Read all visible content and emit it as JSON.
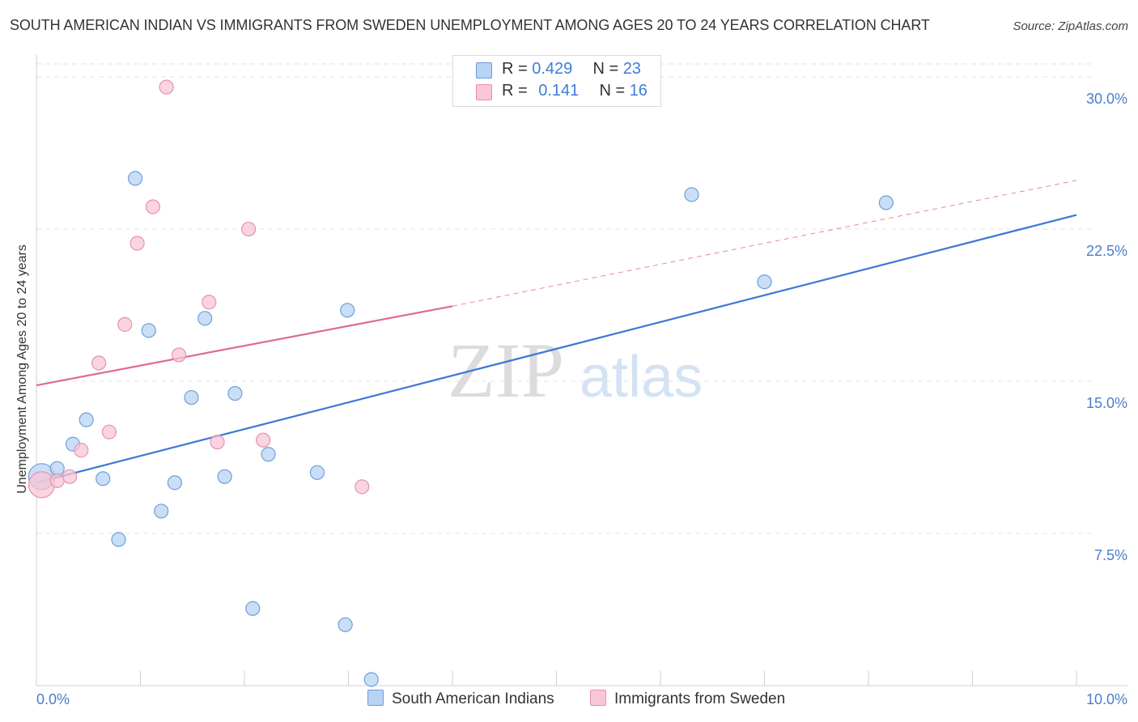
{
  "title": "SOUTH AMERICAN INDIAN VS IMMIGRANTS FROM SWEDEN UNEMPLOYMENT AMONG AGES 20 TO 24 YEARS CORRELATION CHART",
  "source": "Source: ZipAtlas.com",
  "watermark": {
    "zip": "ZIP",
    "atlas": "atlas"
  },
  "legend": {
    "rows": [
      {
        "r_label": "R =",
        "r_value": "0.429",
        "n_label": "N =",
        "n_value": "23"
      },
      {
        "r_label": "R =",
        "r_value": "0.141",
        "n_label": "N =",
        "n_value": "16"
      }
    ]
  },
  "colors": {
    "blue_fill": "#b8d3f3",
    "blue_stroke": "#6d9fde",
    "blue_line": "#3b78d4",
    "pink_fill": "#f8c6d5",
    "pink_stroke": "#e892ad",
    "pink_line": "#e06a93",
    "tick_text": "#4a7fc8",
    "grid": "#e3e3e3"
  },
  "chart_data": {
    "type": "scatter",
    "title": "SOUTH AMERICAN INDIAN VS IMMIGRANTS FROM SWEDEN UNEMPLOYMENT AMONG AGES 20 TO 24 YEARS CORRELATION CHART",
    "xlabel": "",
    "ylabel": "Unemployment Among Ages 20 to 24 years",
    "xlim": [
      0,
      10
    ],
    "ylim": [
      0,
      31
    ],
    "x_tick_labels": [
      "0.0%",
      "10.0%"
    ],
    "y_ticks": [
      7.5,
      15.0,
      22.5,
      30.0
    ],
    "y_tick_labels": [
      "7.5%",
      "15.0%",
      "22.5%",
      "30.0%"
    ],
    "grid": true,
    "legend_position": "top-center",
    "series": [
      {
        "name": "South American Indians",
        "color": "#6d9fde",
        "r": 0.429,
        "n": 23,
        "points": [
          {
            "x": 0.05,
            "y": 10.3,
            "size": "large"
          },
          {
            "x": 0.2,
            "y": 10.7
          },
          {
            "x": 0.35,
            "y": 11.9
          },
          {
            "x": 0.48,
            "y": 13.1
          },
          {
            "x": 0.64,
            "y": 10.2
          },
          {
            "x": 0.79,
            "y": 7.2
          },
          {
            "x": 0.95,
            "y": 25.0
          },
          {
            "x": 1.08,
            "y": 17.5
          },
          {
            "x": 1.2,
            "y": 8.6
          },
          {
            "x": 1.33,
            "y": 10.0
          },
          {
            "x": 1.49,
            "y": 14.2
          },
          {
            "x": 1.62,
            "y": 18.1
          },
          {
            "x": 1.81,
            "y": 10.3
          },
          {
            "x": 1.91,
            "y": 14.4
          },
          {
            "x": 2.08,
            "y": 3.8
          },
          {
            "x": 2.23,
            "y": 11.4
          },
          {
            "x": 2.7,
            "y": 10.5
          },
          {
            "x": 2.97,
            "y": 3.0
          },
          {
            "x": 2.99,
            "y": 18.5
          },
          {
            "x": 3.22,
            "y": 0.3
          },
          {
            "x": 6.3,
            "y": 24.2
          },
          {
            "x": 7.0,
            "y": 19.9
          },
          {
            "x": 8.17,
            "y": 23.8
          }
        ],
        "trend": {
          "x": [
            0,
            10
          ],
          "y": [
            10.0,
            23.2
          ]
        }
      },
      {
        "name": "Immigrants from Sweden",
        "color": "#e892ad",
        "r": 0.141,
        "n": 16,
        "points": [
          {
            "x": 0.05,
            "y": 9.9,
            "size": "large"
          },
          {
            "x": 0.2,
            "y": 10.1
          },
          {
            "x": 0.32,
            "y": 10.3
          },
          {
            "x": 0.43,
            "y": 11.6
          },
          {
            "x": 0.6,
            "y": 15.9
          },
          {
            "x": 0.7,
            "y": 12.5
          },
          {
            "x": 0.85,
            "y": 17.8
          },
          {
            "x": 0.97,
            "y": 21.8
          },
          {
            "x": 1.12,
            "y": 23.6
          },
          {
            "x": 1.25,
            "y": 29.5
          },
          {
            "x": 1.37,
            "y": 16.3
          },
          {
            "x": 1.66,
            "y": 18.9
          },
          {
            "x": 1.74,
            "y": 12.0
          },
          {
            "x": 2.04,
            "y": 22.5
          },
          {
            "x": 2.18,
            "y": 12.1
          },
          {
            "x": 3.13,
            "y": 9.8
          }
        ],
        "trend": {
          "x": [
            0,
            4.0
          ],
          "y": [
            14.8,
            18.7
          ]
        },
        "trend_extension": {
          "x": [
            4.0,
            10
          ],
          "y": [
            18.7,
            24.9
          ]
        }
      }
    ]
  },
  "bottom_legend": {
    "items": [
      {
        "label": "South American Indians"
      },
      {
        "label": "Immigrants from Sweden"
      }
    ]
  }
}
